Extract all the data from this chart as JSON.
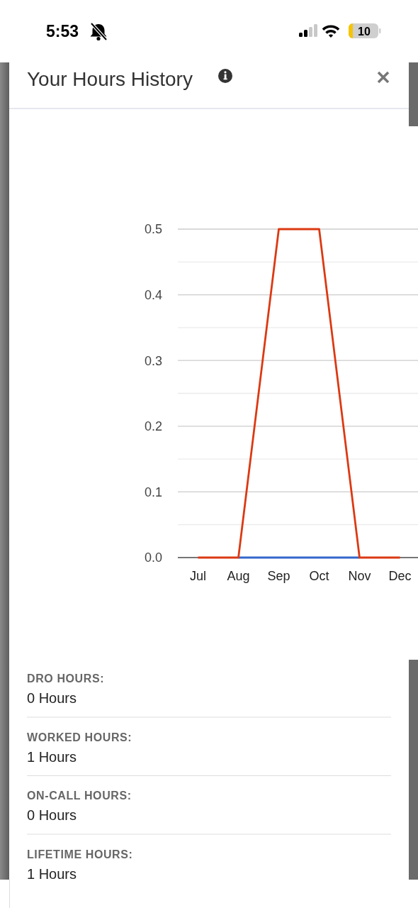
{
  "chart_data": {
    "type": "line",
    "title": "Your Hours History",
    "categories": [
      "Jul",
      "Aug",
      "Sep",
      "Oct",
      "Nov",
      "Dec"
    ],
    "series": [
      {
        "color": "#3366cc",
        "values": [
          null,
          0,
          0,
          0,
          0,
          null
        ]
      },
      {
        "color": "#dc3912",
        "values": [
          0,
          0,
          0.5,
          0.5,
          0,
          0
        ]
      }
    ],
    "ylim": [
      0,
      0.5
    ],
    "yticks": [
      {
        "value": 0,
        "label": "0.0"
      },
      {
        "value": 0.05,
        "label": null
      },
      0.1,
      {
        "value": 0.15,
        "label": null
      },
      0.2,
      {
        "value": 0.25,
        "label": null
      },
      0.3,
      {
        "value": 0.35,
        "label": null
      },
      0.4,
      {
        "value": 0.45,
        "label": null
      },
      0.5
    ],
    "grid": true,
    "annotations": [
      "5:53",
      "10",
      "DRO HOURS:",
      "0 Hours",
      "WORKED HOURS:",
      "1 Hours",
      "ON-CALL HOURS:",
      "0 Hours",
      "LIFETIME HOURS:",
      "1 Hours"
    ]
  }
}
